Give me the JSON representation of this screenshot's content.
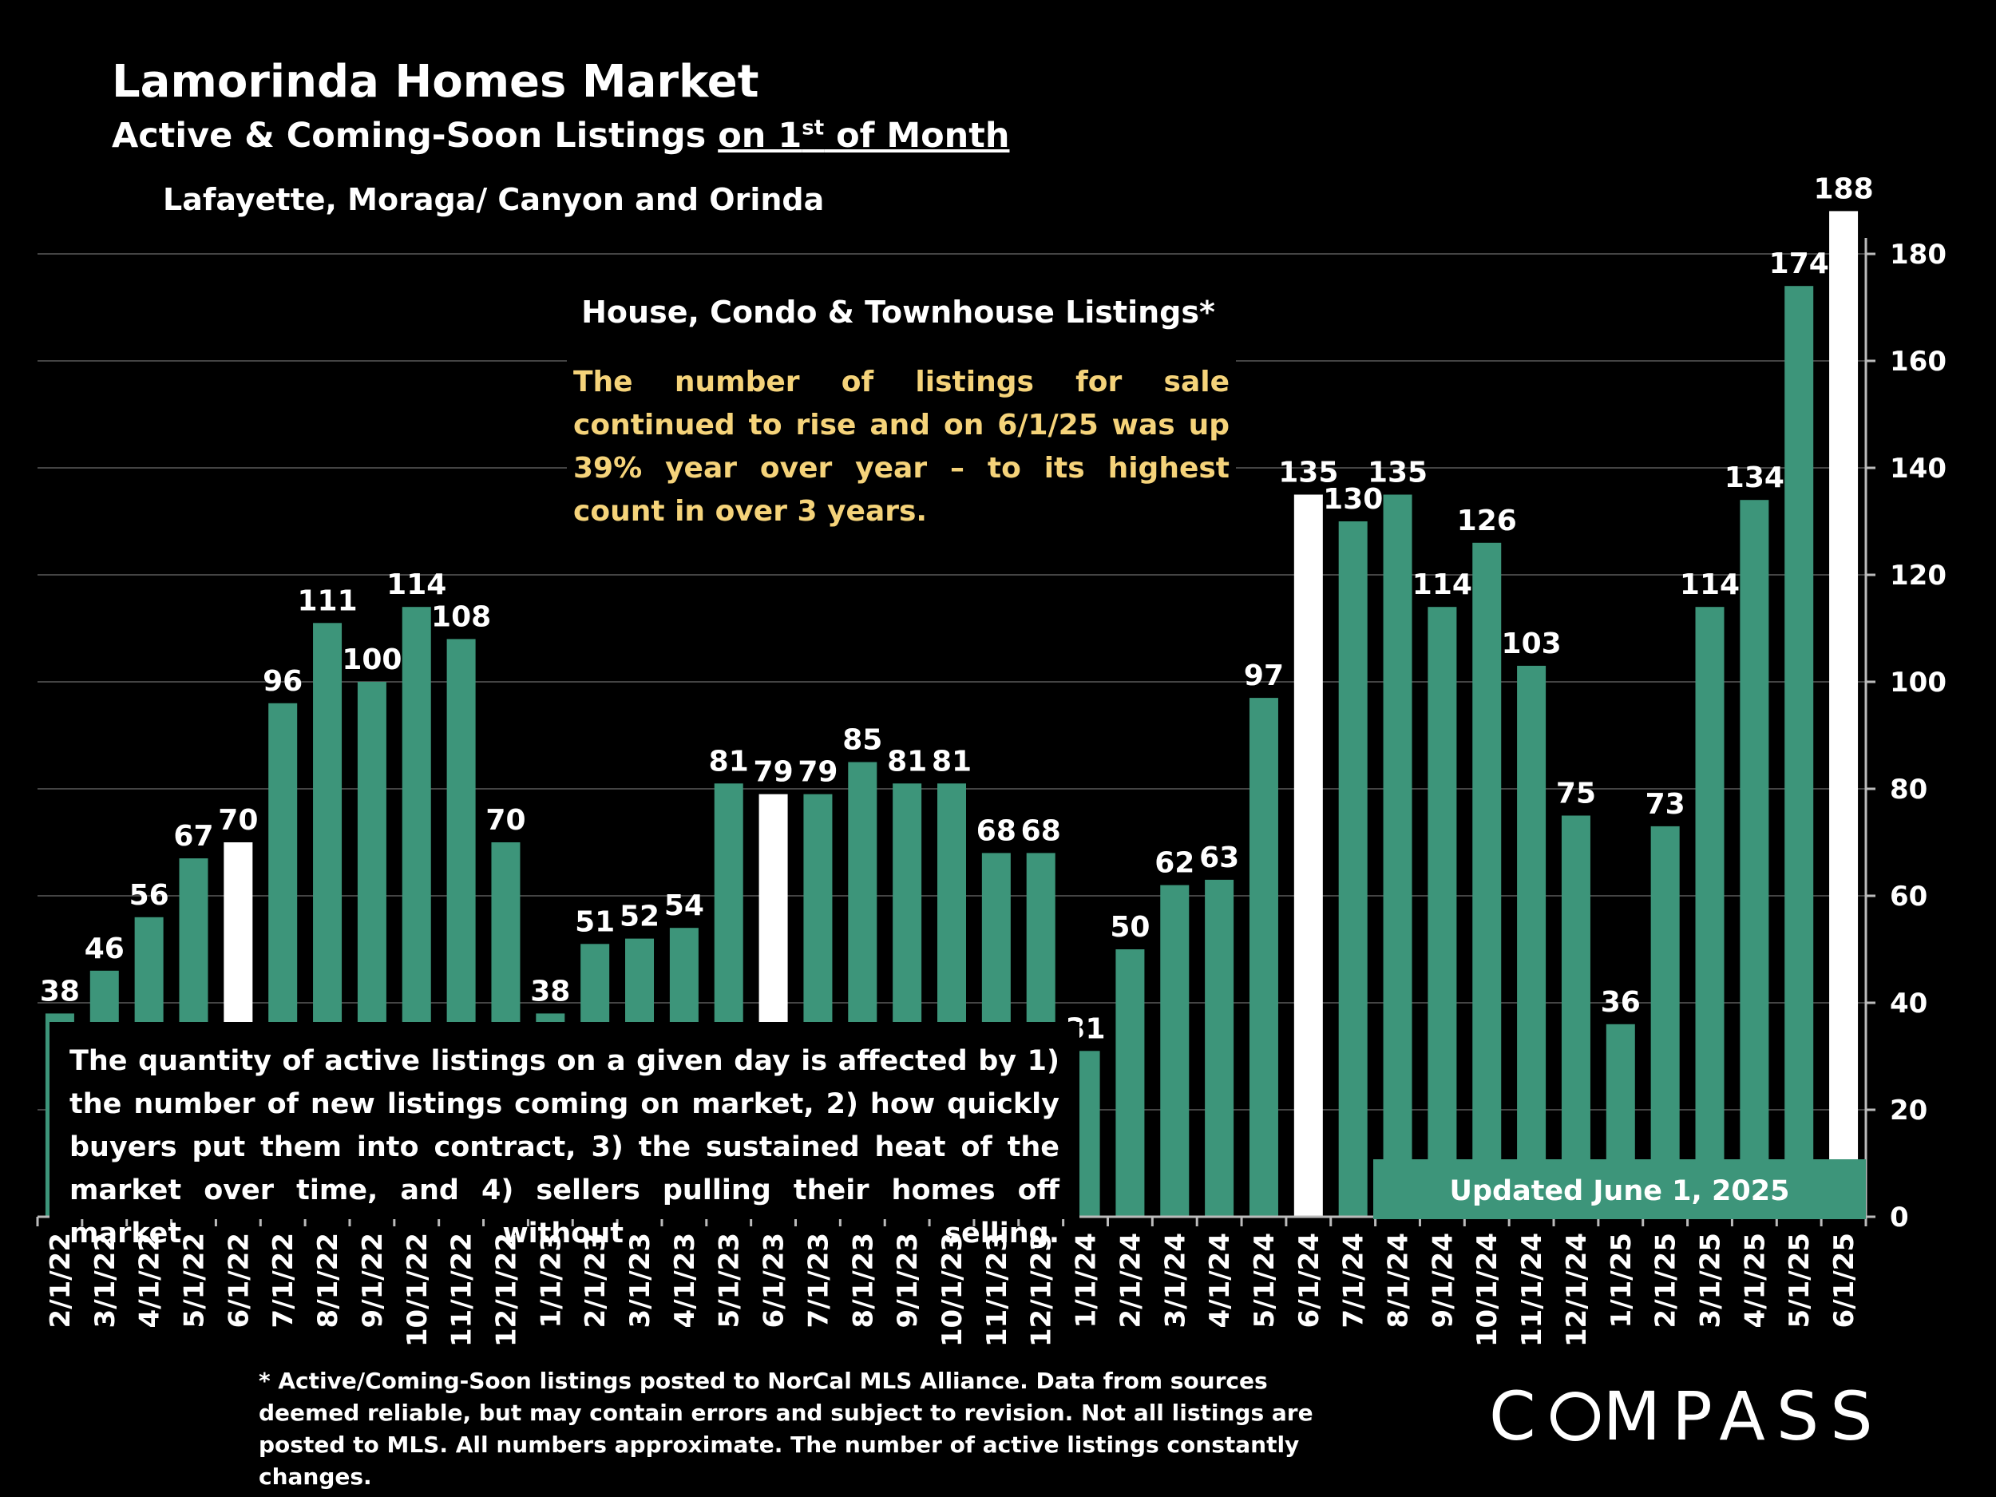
{
  "header": {
    "title": "Lamorinda Homes Market",
    "subtitle_lead": "Active & Coming-Soon Listings ",
    "subtitle_ul_a": "on 1",
    "subtitle_sup": "st",
    "subtitle_ul_b": " of Month",
    "region": "Lafayette, Moraga/ Canyon and Orinda"
  },
  "chart_data": {
    "type": "bar",
    "title": "House, Condo & Townhouse Listings*",
    "categories": [
      "2/1/22",
      "3/1/22",
      "4/1/22",
      "5/1/22",
      "6/1/22",
      "7/1/22",
      "8/1/22",
      "9/1/22",
      "10/1/22",
      "11/1/22",
      "12/1/22",
      "1/1/23",
      "2/1/23",
      "3/1/23",
      "4/1/23",
      "5/1/23",
      "6/1/23",
      "7/1/23",
      "8/1/23",
      "9/1/23",
      "10/1/23",
      "11/1/23",
      "12/1/23",
      "1/1/24",
      "2/1/24",
      "3/1/24",
      "4/1/24",
      "5/1/24",
      "6/1/24",
      "7/1/24",
      "8/1/24",
      "9/1/24",
      "10/1/24",
      "11/1/24",
      "12/1/24",
      "1/1/25",
      "2/1/25",
      "3/1/25",
      "4/1/25",
      "5/1/25",
      "6/1/25"
    ],
    "values": [
      38,
      46,
      56,
      67,
      70,
      96,
      111,
      100,
      114,
      108,
      70,
      38,
      51,
      52,
      54,
      81,
      79,
      79,
      85,
      81,
      81,
      68,
      68,
      31,
      50,
      62,
      63,
      97,
      135,
      130,
      135,
      114,
      126,
      103,
      75,
      36,
      73,
      114,
      134,
      174,
      188
    ],
    "highlighted_categories": [
      "6/1/22",
      "6/1/23",
      "6/1/24",
      "6/1/25"
    ],
    "y_axis_ticks": [
      "0",
      "20",
      "40",
      "60",
      "80",
      "100",
      "120",
      "140",
      "160",
      "180"
    ],
    "ylim": [
      0,
      190
    ],
    "y_axis_position": "right",
    "grid": true,
    "colors": {
      "bar": "#3d957a",
      "highlight": "#ffffff",
      "grid": "#444444",
      "background": "#000000"
    }
  },
  "chart_note": "The number of listings for sale continued to rise and on 6/1/25 was up 39% year over year – to its highest count in over 3 years.",
  "info_box": "The quantity of active listings on a given day is affected by 1) the number of new listings coming on market, 2) how quickly buyers put them into contract, 3) the sustained heat of the market over time, and 4) sellers pulling their homes off market without selling.",
  "updated_label": "Updated June 1, 2025",
  "footnote": "* Active/Coming-Soon listings posted to NorCal MLS Alliance.  Data from sources deemed reliable, but may contain errors and subject to revision.  Not all listings are posted to MLS. All numbers approximate. The number of active listings constantly changes.",
  "logo": {
    "before": "C",
    "after": "MPASS"
  }
}
